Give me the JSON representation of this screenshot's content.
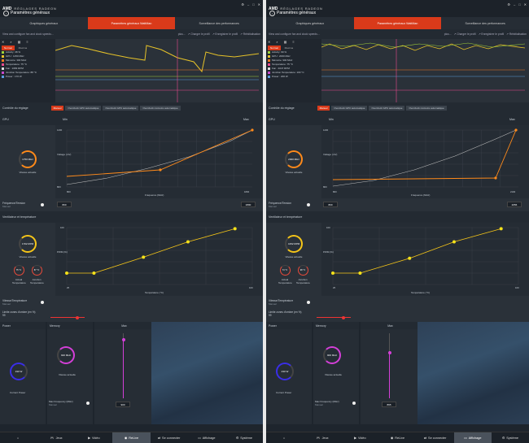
{
  "panels": [
    {
      "brand": "RÉGLAGES RADEON",
      "amd": "AMD",
      "page_title": "Paramètres généraux",
      "tabs": [
        {
          "label": "Graphiques généraux"
        },
        {
          "label": "Paramètres généraux WattMan"
        },
        {
          "label": "Surveillance des performances"
        }
      ],
      "description": "View and configure fan and clock speeds...",
      "more": "plus...",
      "actions": [
        "Charger le profil",
        "Enregistrer le profil",
        "Réinitialisation"
      ],
      "monitor_tabs": [
        "Normal",
        "Maxima"
      ],
      "legend": [
        {
          "label": "Activity: 38 %",
          "color": "#9fd13a"
        },
        {
          "label": "GPU : 1450 MHz",
          "color": "#e6c229"
        },
        {
          "label": "Mémoire: 300 MHz",
          "color": "#ee7722"
        },
        {
          "label": "Température: 75 °C",
          "color": "#e94a8e"
        },
        {
          "label": "Fan : 1683 RPM",
          "color": "#ddd"
        },
        {
          "label": "Junction Temperature: 88 °C",
          "color": "#c64ac9"
        },
        {
          "label": "Power : 170 W",
          "color": "#5a9be0"
        }
      ],
      "tuning_label": "Contrôle du réglage",
      "tuning_buttons": [
        {
          "label": "Manuel",
          "active": true
        },
        {
          "label": "Overclock GPU automatique"
        },
        {
          "label": "Overclock GPU automatique"
        },
        {
          "label": "Overclock mémoire automatique"
        }
      ],
      "gpu_label": "GPU",
      "min_label": "Min",
      "max_label": "Max",
      "gpu_dial": {
        "value": "1750 MHz",
        "label": "Vitesse actuelle",
        "color": "#ff8a1a"
      },
      "gpu_chart": {
        "ylabel": "Voltage (mV)",
        "xlabel": "Fréquence (MHz)",
        "ymax": "1200",
        "ymin": "800",
        "xmin": "800",
        "xmax": "1800",
        "curve": [
          [
            0,
            10
          ],
          [
            50,
            18
          ],
          [
            100,
            30
          ],
          [
            150,
            44
          ],
          [
            200,
            63
          ],
          [
            228,
            77
          ]
        ],
        "line": [
          [
            0,
            20
          ],
          [
            115,
            28
          ],
          [
            228,
            77
          ]
        ]
      },
      "freq_voltage": {
        "label": "Fréquence/Tension",
        "sub": "Manuel",
        "min_val": "800",
        "max_val": "1800"
      },
      "fan_section": "Ventilateur et température",
      "fan_dial": {
        "value": "1702 RPM",
        "label": "Vitesse actuelle",
        "color": "#f5c518"
      },
      "temp_actual": {
        "value": "75 °C",
        "label": "Actual Temperature",
        "color": "#e84a3a"
      },
      "temp_junction": {
        "value": "87 °C",
        "label": "Junction Temperature",
        "color": "#e84a3a"
      },
      "fan_chart": {
        "ylabel": "PWM (%)",
        "xlabel": "Température (°C)",
        "ymax": "100",
        "xmin": "25",
        "xmax": "100",
        "points": [
          [
            25,
            20
          ],
          [
            36,
            20
          ],
          [
            56,
            48
          ],
          [
            74,
            75
          ],
          [
            93,
            98
          ]
        ]
      },
      "fan_temp": {
        "label": "Vitesse/Température",
        "sub": "Manuel"
      },
      "zero_rpm": {
        "label": "Limite zones d'ombre (en %)",
        "sub": "99",
        "fill": 0.74
      },
      "power": {
        "header": "Power",
        "value": "190 W",
        "label": "Current Power",
        "color": "#3a2ee8"
      },
      "memory": {
        "header": "Memory",
        "value": "920 MHz",
        "label": "Vitesse actuelle",
        "color": "#d43fd8"
      },
      "mem_max": {
        "header": "Max",
        "value": "900",
        "fill": 0.92
      },
      "max_freq": {
        "label": "Max Frequency (MHz)",
        "sub": "Manuel"
      },
      "nav": [
        {
          "icon": "home-icon",
          "label": ""
        },
        {
          "icon": "gamepad-icon",
          "label": "Jeux"
        },
        {
          "icon": "video-icon",
          "label": "Vidéo"
        },
        {
          "icon": "relive-icon",
          "label": "ReLive",
          "active": true
        },
        {
          "icon": "connect-icon",
          "label": "Se connecter"
        },
        {
          "icon": "display-icon",
          "label": "Affichage"
        },
        {
          "icon": "system-icon",
          "label": "Système"
        }
      ]
    },
    {
      "brand": "RÉGLAGES RADEON",
      "amd": "AMD",
      "page_title": "Paramètres généraux",
      "tabs": [
        {
          "label": "Graphiques généraux"
        },
        {
          "label": "Paramètres généraux WattMan"
        },
        {
          "label": "Surveillance des performances"
        }
      ],
      "description": "View and configure fan and clock speeds...",
      "more": "plus...",
      "actions": [
        "Charger le profil",
        "Enregistrer le profil",
        "Réinitialisation"
      ],
      "monitor_tabs": [
        "Normal",
        "Maxima"
      ],
      "legend": [
        {
          "label": "Activity: 99 %",
          "color": "#9fd13a"
        },
        {
          "label": "GPU : 2000 MHz",
          "color": "#e6c229"
        },
        {
          "label": "Mémoire: 900 MHz",
          "color": "#ee7722"
        },
        {
          "label": "Température: 75 °C",
          "color": "#e94a8e"
        },
        {
          "label": "Fan : 4047 RPM",
          "color": "#ddd"
        },
        {
          "label": "Junction Temperature: 100 °C",
          "color": "#c64ac9"
        },
        {
          "label": "Power : 200 W",
          "color": "#5a9be0"
        }
      ],
      "tuning_label": "Contrôle du réglage",
      "tuning_buttons": [
        {
          "label": "Manuel",
          "active": true
        },
        {
          "label": "Overclock GPU automatique"
        },
        {
          "label": "Overclock GPU automatique"
        },
        {
          "label": "Overclock mémoire automatique"
        }
      ],
      "gpu_label": "GPU",
      "min_label": "Min",
      "max_label": "Max",
      "gpu_dial": {
        "value": "2000 MHz",
        "label": "Vitesse actuelle",
        "color": "#ff8a1a"
      },
      "gpu_chart": {
        "ylabel": "Voltage (mV)",
        "xlabel": "Fréquence (MHz)",
        "ymax": "1200",
        "ymin": "800",
        "xmin": "800",
        "xmax": "2100",
        "curve": [
          [
            0,
            8
          ],
          [
            50,
            15
          ],
          [
            100,
            28
          ],
          [
            150,
            45
          ],
          [
            200,
            66
          ],
          [
            225,
            77
          ]
        ],
        "line": [
          [
            0,
            16
          ],
          [
            200,
            18
          ],
          [
            225,
            77
          ]
        ]
      },
      "freq_voltage": {
        "label": "Fréquence/Tension",
        "sub": "Manuel",
        "min_val": "800",
        "max_val": "2056"
      },
      "fan_section": "Ventilateur et température",
      "fan_dial": {
        "value": "4152 RPM",
        "label": "Vitesse actuelle",
        "color": "#f5c518"
      },
      "temp_actual": {
        "value": "74 °C",
        "label": "Actual Temperature",
        "color": "#e84a3a"
      },
      "temp_junction": {
        "value": "98 °C",
        "label": "Junction Temperature",
        "color": "#e84a3a"
      },
      "fan_chart": {
        "ylabel": "PWM (%)",
        "xlabel": "Température (°C)",
        "ymax": "100",
        "xmin": "25",
        "xmax": "100",
        "points": [
          [
            25,
            20
          ],
          [
            36,
            20
          ],
          [
            56,
            46
          ],
          [
            74,
            75
          ],
          [
            93,
            98
          ]
        ]
      },
      "fan_temp": {
        "label": "Vitesse/Température",
        "sub": "Manuel"
      },
      "zero_rpm": {
        "label": "Limite zones d'ombre (en %)",
        "sub": "99",
        "fill": 0.74
      },
      "power": {
        "header": "Power",
        "value": "230 W",
        "label": "Current Power",
        "color": "#3a2ee8"
      },
      "memory": {
        "header": "Memory",
        "value": "900 MHz",
        "label": "Vitesse actuelle",
        "color": "#d43fd8"
      },
      "mem_max": {
        "header": "Max",
        "value": "895",
        "fill": 0.72
      },
      "max_freq": {
        "label": "Max Frequency (MHz)",
        "sub": "Manuel"
      },
      "nav": [
        {
          "icon": "home-icon",
          "label": ""
        },
        {
          "icon": "gamepad-icon",
          "label": "Jeux"
        },
        {
          "icon": "video-icon",
          "label": "Vidéo"
        },
        {
          "icon": "relive-icon",
          "label": "ReLive"
        },
        {
          "icon": "connect-icon",
          "label": "Se connecter"
        },
        {
          "icon": "display-icon",
          "label": "Affichage",
          "active": true
        },
        {
          "icon": "system-icon",
          "label": "Système"
        }
      ]
    }
  ]
}
